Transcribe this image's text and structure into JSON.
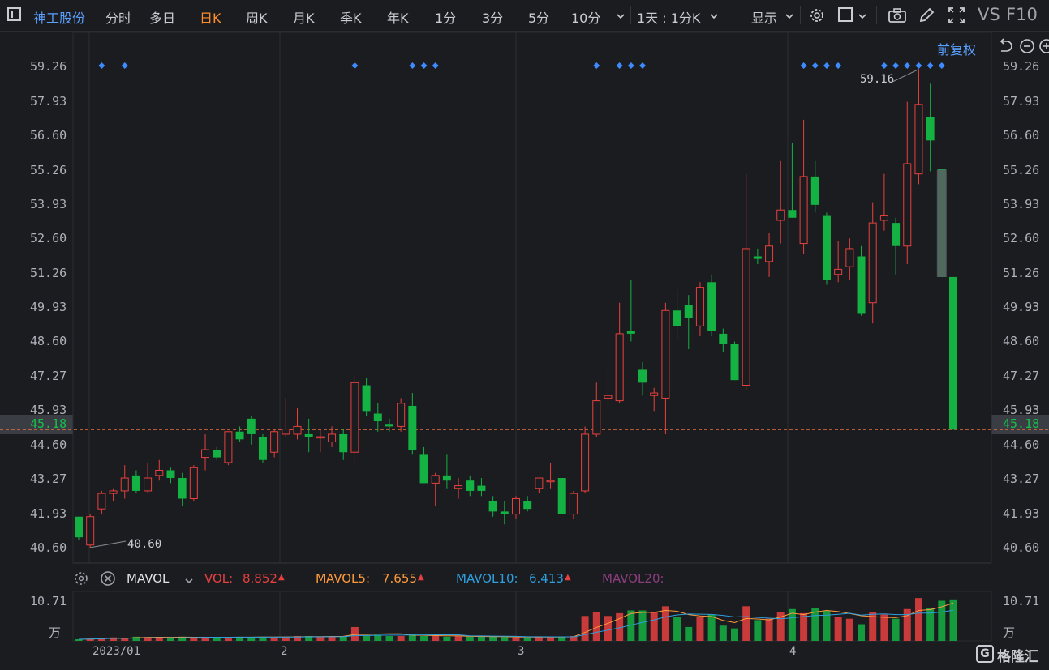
{
  "toolbar": {
    "stock_name": "神工股份",
    "tabs": [
      "分时",
      "多日",
      "日K",
      "周K",
      "月K",
      "季K",
      "年K",
      "1分",
      "3分",
      "5分",
      "10分"
    ],
    "active_tab": "日K",
    "interval_select": "1天 : 1分K",
    "display_menu": "显示",
    "vs_label": "VS",
    "f10_label": "F10"
  },
  "chart_header": {
    "adjust_label": "前复权"
  },
  "price_axis": {
    "ticks": [
      "59.26",
      "57.93",
      "56.60",
      "55.26",
      "53.93",
      "52.60",
      "51.26",
      "49.93",
      "48.60",
      "47.27",
      "45.93",
      "44.60",
      "43.27",
      "41.93",
      "40.60"
    ],
    "current_price": "45.18",
    "high_annotation": "59.16",
    "low_annotation": "40.60"
  },
  "volume_panel": {
    "indicator_select": "MAVOL",
    "vol_label": "VOL:",
    "vol_value": "8.852",
    "mavol5_label": "MAVOL5:",
    "mavol5_value": "7.655",
    "mavol10_label": "MAVOL10:",
    "mavol10_value": "6.413",
    "mavol20_label": "MAVOL20:",
    "axis_max": "10.71",
    "axis_unit": "万"
  },
  "time_axis": {
    "labels": [
      "2023/01",
      "2",
      "3",
      "4"
    ]
  },
  "watermark": "格隆汇",
  "colors": {
    "up": "#e8403f",
    "down": "#14b143",
    "accent": "#ff8c2e",
    "link": "#5aa0ff",
    "dot": "#3d8bff"
  },
  "chart_data": {
    "type": "candlestick",
    "y_range": [
      40.0,
      59.9
    ],
    "candles": [
      {
        "o": 41.8,
        "h": 41.8,
        "l": 40.9,
        "c": 41.0
      },
      {
        "o": 40.7,
        "h": 41.9,
        "l": 40.6,
        "c": 41.8
      },
      {
        "o": 42.1,
        "h": 42.8,
        "l": 41.9,
        "c": 42.7
      },
      {
        "o": 42.7,
        "h": 42.9,
        "l": 42.4,
        "c": 42.8
      },
      {
        "o": 42.8,
        "h": 43.8,
        "l": 42.5,
        "c": 43.3
      },
      {
        "o": 43.4,
        "h": 43.6,
        "l": 42.7,
        "c": 42.8
      },
      {
        "o": 42.8,
        "h": 43.9,
        "l": 42.7,
        "c": 43.3
      },
      {
        "o": 43.4,
        "h": 44.0,
        "l": 43.2,
        "c": 43.6
      },
      {
        "o": 43.6,
        "h": 43.7,
        "l": 43.1,
        "c": 43.3
      },
      {
        "o": 43.3,
        "h": 43.5,
        "l": 42.2,
        "c": 42.5
      },
      {
        "o": 42.5,
        "h": 43.8,
        "l": 42.4,
        "c": 43.7
      },
      {
        "o": 44.1,
        "h": 45.0,
        "l": 43.6,
        "c": 44.4
      },
      {
        "o": 44.4,
        "h": 44.5,
        "l": 44.0,
        "c": 44.1
      },
      {
        "o": 43.9,
        "h": 45.0,
        "l": 43.8,
        "c": 45.1
      },
      {
        "o": 45.1,
        "h": 45.3,
        "l": 44.7,
        "c": 44.8
      },
      {
        "o": 45.6,
        "h": 45.7,
        "l": 44.6,
        "c": 45.0
      },
      {
        "o": 44.9,
        "h": 45.0,
        "l": 43.9,
        "c": 44.0
      },
      {
        "o": 44.3,
        "h": 45.2,
        "l": 44.1,
        "c": 45.1
      },
      {
        "o": 45.0,
        "h": 46.4,
        "l": 44.9,
        "c": 45.2
      },
      {
        "o": 45.0,
        "h": 46.0,
        "l": 44.8,
        "c": 45.3
      },
      {
        "o": 45.0,
        "h": 45.6,
        "l": 44.3,
        "c": 44.9
      },
      {
        "o": 44.9,
        "h": 45.2,
        "l": 44.3,
        "c": 44.9
      },
      {
        "o": 44.7,
        "h": 45.3,
        "l": 44.5,
        "c": 45.0
      },
      {
        "o": 45.0,
        "h": 45.2,
        "l": 44.0,
        "c": 44.3
      },
      {
        "o": 44.3,
        "h": 47.3,
        "l": 43.9,
        "c": 47.0
      },
      {
        "o": 46.9,
        "h": 47.2,
        "l": 45.7,
        "c": 45.9
      },
      {
        "o": 45.8,
        "h": 46.2,
        "l": 45.1,
        "c": 45.5
      },
      {
        "o": 45.4,
        "h": 45.6,
        "l": 45.1,
        "c": 45.3
      },
      {
        "o": 45.3,
        "h": 46.4,
        "l": 45.1,
        "c": 46.2
      },
      {
        "o": 46.1,
        "h": 46.6,
        "l": 44.2,
        "c": 44.4
      },
      {
        "o": 44.2,
        "h": 44.5,
        "l": 43.1,
        "c": 43.1
      },
      {
        "o": 43.1,
        "h": 43.5,
        "l": 42.2,
        "c": 43.4
      },
      {
        "o": 43.4,
        "h": 44.2,
        "l": 42.9,
        "c": 43.2
      },
      {
        "o": 42.9,
        "h": 43.3,
        "l": 42.5,
        "c": 43.0
      },
      {
        "o": 43.2,
        "h": 43.4,
        "l": 42.6,
        "c": 42.8
      },
      {
        "o": 43.0,
        "h": 43.3,
        "l": 42.6,
        "c": 42.8
      },
      {
        "o": 42.4,
        "h": 42.6,
        "l": 41.8,
        "c": 42.0
      },
      {
        "o": 42.0,
        "h": 42.4,
        "l": 41.5,
        "c": 41.9
      },
      {
        "o": 41.9,
        "h": 42.6,
        "l": 41.7,
        "c": 42.5
      },
      {
        "o": 42.4,
        "h": 42.6,
        "l": 42.0,
        "c": 42.1
      },
      {
        "o": 42.9,
        "h": 43.3,
        "l": 42.7,
        "c": 43.3
      },
      {
        "o": 43.2,
        "h": 43.9,
        "l": 42.9,
        "c": 43.2
      },
      {
        "o": 43.3,
        "h": 43.3,
        "l": 41.9,
        "c": 41.9
      },
      {
        "o": 41.9,
        "h": 42.8,
        "l": 41.7,
        "c": 42.7
      },
      {
        "o": 42.8,
        "h": 45.3,
        "l": 42.7,
        "c": 45.0
      },
      {
        "o": 45.0,
        "h": 47.0,
        "l": 44.9,
        "c": 46.3
      },
      {
        "o": 46.4,
        "h": 47.5,
        "l": 46.0,
        "c": 46.5
      },
      {
        "o": 46.3,
        "h": 50.1,
        "l": 46.2,
        "c": 48.9
      },
      {
        "o": 49.0,
        "h": 51.0,
        "l": 48.6,
        "c": 48.9
      },
      {
        "o": 47.5,
        "h": 47.8,
        "l": 46.5,
        "c": 47.0
      },
      {
        "o": 46.5,
        "h": 46.8,
        "l": 45.9,
        "c": 46.6
      },
      {
        "o": 46.4,
        "h": 50.1,
        "l": 45.0,
        "c": 49.8
      },
      {
        "o": 49.8,
        "h": 50.6,
        "l": 48.7,
        "c": 49.2
      },
      {
        "o": 50.0,
        "h": 50.4,
        "l": 48.3,
        "c": 49.5
      },
      {
        "o": 49.2,
        "h": 50.9,
        "l": 48.8,
        "c": 50.7
      },
      {
        "o": 50.9,
        "h": 51.2,
        "l": 48.8,
        "c": 49.0
      },
      {
        "o": 48.9,
        "h": 49.1,
        "l": 48.2,
        "c": 48.5
      },
      {
        "o": 48.5,
        "h": 48.6,
        "l": 47.1,
        "c": 47.1
      },
      {
        "o": 46.9,
        "h": 55.1,
        "l": 46.7,
        "c": 52.2
      },
      {
        "o": 51.9,
        "h": 52.2,
        "l": 51.6,
        "c": 51.8
      },
      {
        "o": 51.7,
        "h": 52.8,
        "l": 51.1,
        "c": 52.3
      },
      {
        "o": 53.3,
        "h": 55.6,
        "l": 52.4,
        "c": 53.7
      },
      {
        "o": 53.7,
        "h": 56.3,
        "l": 53.4,
        "c": 53.4
      },
      {
        "o": 52.4,
        "h": 57.2,
        "l": 52.0,
        "c": 55.0
      },
      {
        "o": 55.0,
        "h": 55.6,
        "l": 53.6,
        "c": 53.9
      },
      {
        "o": 53.5,
        "h": 53.6,
        "l": 50.8,
        "c": 51.0
      },
      {
        "o": 51.2,
        "h": 52.5,
        "l": 50.9,
        "c": 51.4
      },
      {
        "o": 51.5,
        "h": 52.6,
        "l": 51.0,
        "c": 52.2
      },
      {
        "o": 51.9,
        "h": 52.3,
        "l": 49.6,
        "c": 49.7
      },
      {
        "o": 50.1,
        "h": 54.0,
        "l": 49.3,
        "c": 53.2
      },
      {
        "o": 53.3,
        "h": 55.1,
        "l": 52.9,
        "c": 53.5
      },
      {
        "o": 53.2,
        "h": 53.4,
        "l": 51.2,
        "c": 52.3
      },
      {
        "o": 52.3,
        "h": 57.9,
        "l": 51.6,
        "c": 55.5
      },
      {
        "o": 55.1,
        "h": 59.16,
        "l": 54.7,
        "c": 57.8
      },
      {
        "o": 57.3,
        "h": 58.6,
        "l": 55.2,
        "c": 56.4
      },
      {
        "o": 55.3,
        "h": 55.3,
        "l": 51.1,
        "c": 51.1
      },
      {
        "o": 51.1,
        "h": 51.1,
        "l": 45.18,
        "c": 45.18
      }
    ],
    "volumes": [
      0.12,
      0.15,
      0.2,
      0.25,
      0.22,
      0.3,
      0.28,
      0.26,
      0.22,
      0.3,
      0.25,
      0.28,
      0.25,
      0.25,
      0.3,
      0.28,
      0.3,
      0.25,
      0.3,
      0.35,
      0.35,
      0.3,
      0.3,
      0.35,
      1.0,
      0.4,
      0.45,
      0.35,
      0.35,
      0.5,
      0.35,
      0.35,
      0.3,
      0.35,
      0.3,
      0.3,
      0.3,
      0.28,
      0.25,
      0.25,
      0.3,
      0.3,
      0.3,
      0.35,
      1.8,
      2.1,
      1.8,
      2.0,
      2.2,
      2.2,
      2.1,
      2.5,
      1.7,
      1.0,
      1.7,
      1.9,
      1.1,
      0.9,
      2.5,
      1.5,
      1.6,
      2.1,
      2.3,
      2.0,
      2.4,
      2.2,
      1.7,
      1.6,
      1.2,
      2.1,
      1.9,
      1.6,
      2.3,
      3.1,
      2.4,
      2.9,
      3.0
    ],
    "vol_range": [
      0,
      3.4
    ],
    "top_dots": [
      2,
      4,
      24,
      29,
      30,
      31,
      45,
      47,
      48,
      49,
      63,
      64,
      65,
      66,
      70,
      71,
      72,
      73,
      74,
      75
    ]
  }
}
